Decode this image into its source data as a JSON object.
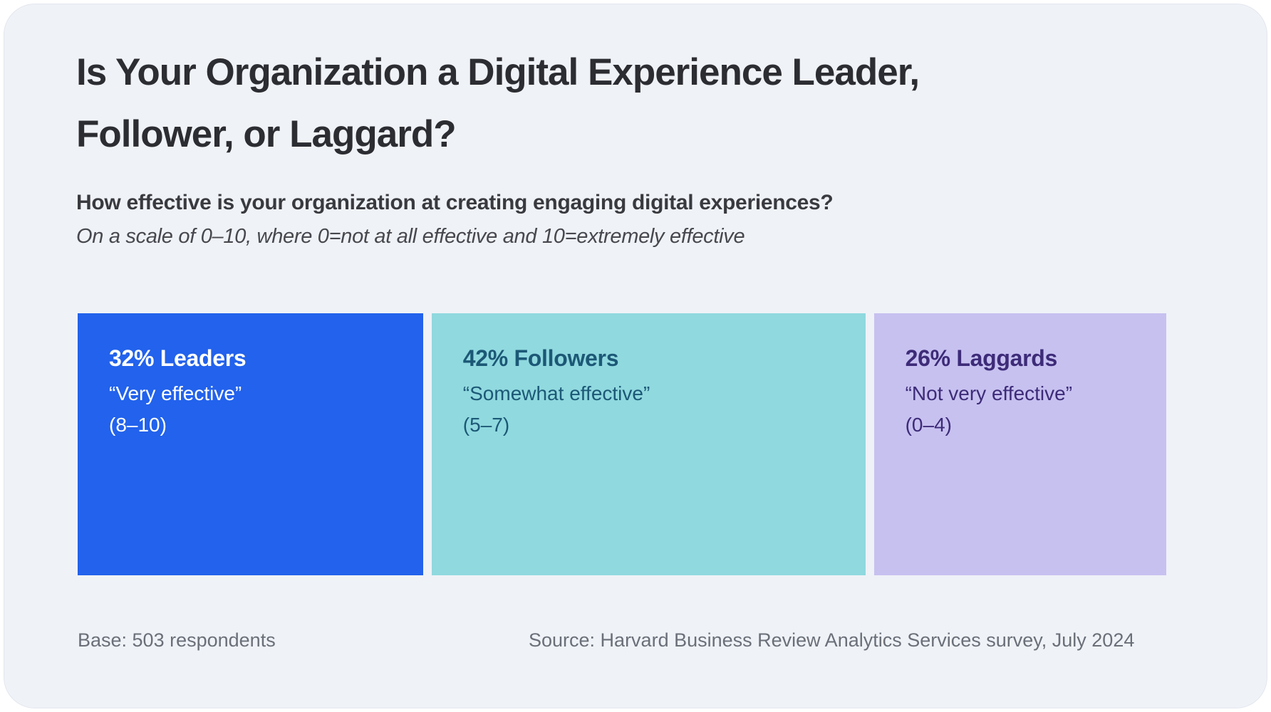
{
  "page": {
    "outer_background": "#ffffff",
    "card_background": "#EFF2F7"
  },
  "title": {
    "lines": [
      "Is Your Organization a Digital Experience Leader,",
      "Follower, or Laggard?"
    ]
  },
  "question": {
    "text": "How effective is your organization at creating engaging digital experiences?",
    "scale_note": "On a scale of 0–10, where 0=not at all effective and 10=extremely effective"
  },
  "chart_data": {
    "type": "bar",
    "subtype": "proportional-horizontal-segments",
    "title": "Is Your Organization a Digital Experience Leader, Follower, or Laggard?",
    "question": "How effective is your organization at creating engaging digital experiences?",
    "scale_note": "On a scale of 0–10, where 0=not at all effective and 10=extremely effective",
    "unit": "percent of respondents",
    "categories": [
      "Leaders",
      "Followers",
      "Laggards"
    ],
    "values": [
      32,
      42,
      26
    ],
    "segments": [
      {
        "label": "32% Leaders",
        "category": "Leaders",
        "value": 32,
        "description": "“Very effective”",
        "range": "(8–10)",
        "color": "#2262EC",
        "text_color": "#FFFFFF"
      },
      {
        "label": "42% Followers",
        "category": "Followers",
        "value": 42,
        "description": "“Somewhat effective”",
        "range": "(5–7)",
        "color": "#90D9DF",
        "text_color": "#1C5876"
      },
      {
        "label": "26% Laggards",
        "category": "Laggards",
        "value": 26,
        "description": "“Not very effective”",
        "range": "(0–4)",
        "color": "#C7C1F0",
        "text_color": "#3D2B78"
      }
    ]
  },
  "footer": {
    "base": "Base: 503 respondents",
    "source": "Source: Harvard Business Review Analytics Services survey, July 2024"
  }
}
